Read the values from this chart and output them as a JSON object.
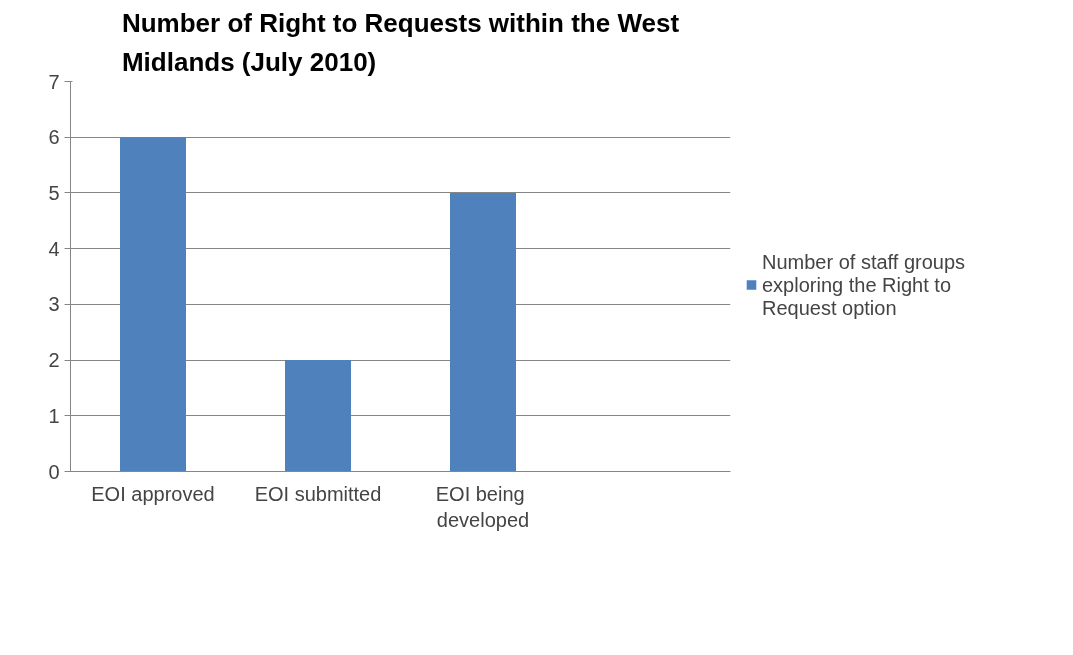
{
  "chart_data": {
    "type": "bar",
    "title": "Number of Right to Requests within the West Midlands (July 2010)",
    "categories": [
      "EOI approved",
      "EOI submitted",
      "EOI  being developed",
      null
    ],
    "series": [
      {
        "name": "Number of staff groups exploring the Right to Request option",
        "color": "#4f81bd",
        "values": [
          6,
          2,
          5,
          null
        ]
      }
    ],
    "ylim": [
      0,
      7
    ],
    "yticks": [
      0,
      1,
      2,
      3,
      4,
      5,
      6,
      7
    ],
    "grid": "y",
    "legend": "right"
  }
}
